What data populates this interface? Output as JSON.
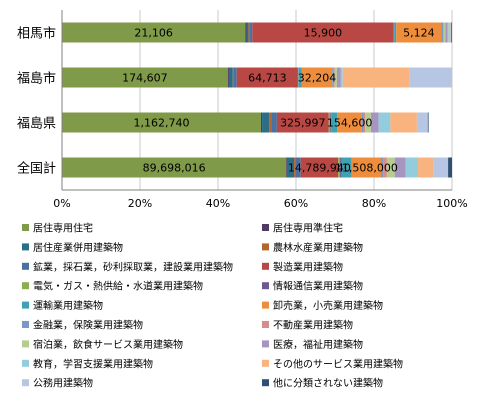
{
  "chart_data": {
    "type": "bar",
    "orientation": "horizontal",
    "stacked": "percent",
    "categories": [
      "相馬市",
      "福島市",
      "福島県",
      "全国計"
    ],
    "xlim": [
      0,
      100
    ],
    "x_ticks": [
      "0%",
      "20%",
      "40%",
      "60%",
      "80%",
      "100%"
    ],
    "grid": true,
    "legend_position": "bottom",
    "series": [
      {
        "name": "居住専用住宅",
        "color": "#7F9A48",
        "values": [
          47.0,
          42.5,
          51.0,
          57.5
        ]
      },
      {
        "name": "居住専用準住宅",
        "color": "#4E3B62",
        "values": [
          0.3,
          0.3,
          0.3,
          0.4
        ]
      },
      {
        "name": "居住産業併用建築物",
        "color": "#2C6E87",
        "values": [
          0.5,
          1.0,
          1.8,
          1.6
        ]
      },
      {
        "name": "農林水産業用建築物",
        "color": "#B4652B",
        "values": [
          0.3,
          0.2,
          0.6,
          0.4
        ]
      },
      {
        "name": "鉱業，採石業，砂利採取業，建設業用建築物",
        "color": "#4A71A2",
        "values": [
          0.7,
          0.8,
          1.4,
          1.3
        ]
      },
      {
        "name": "製造業用建築物",
        "color": "#B94844",
        "values": [
          36.2,
          15.7,
          13.3,
          9.6
        ]
      },
      {
        "name": "電気・ガス・熱供給・水道業用建築物",
        "color": "#8DAD50",
        "values": [
          0.1,
          0.1,
          0.4,
          0.5
        ]
      },
      {
        "name": "情報通信業用建築物",
        "color": "#6E5A8E",
        "values": [
          0.1,
          0.1,
          0.2,
          0.4
        ]
      },
      {
        "name": "運輸業用建築物",
        "color": "#3DA3B3",
        "values": [
          0.5,
          0.8,
          1.6,
          2.6
        ]
      },
      {
        "name": "卸売業，小売業用建築物",
        "color": "#EE8E3D",
        "values": [
          11.6,
          7.8,
          6.3,
          7.5
        ]
      },
      {
        "name": "金融業，保険業用建築物",
        "color": "#7D97C6",
        "values": [
          0.4,
          0.3,
          0.4,
          0.6
        ]
      },
      {
        "name": "不動産業用建築物",
        "color": "#D88C8A",
        "values": [
          0.2,
          0.3,
          0.4,
          0.9
        ]
      },
      {
        "name": "宿泊業，飲食サービス業用建築物",
        "color": "#B7CD8C",
        "values": [
          0.4,
          0.6,
          1.5,
          2.0
        ]
      },
      {
        "name": "医療，福祉用建築物",
        "color": "#A795C1",
        "values": [
          0.6,
          1.0,
          2.0,
          2.8
        ]
      },
      {
        "name": "教育，学習支援業用建築物",
        "color": "#93CDDD",
        "values": [
          0.3,
          0.5,
          3.0,
          3.2
        ]
      },
      {
        "name": "その他のサービス業用建築物",
        "color": "#F9B37E",
        "values": [
          0.4,
          17.0,
          6.8,
          4.0
        ]
      },
      {
        "name": "公務用建築物",
        "color": "#B7C6E3",
        "values": [
          0.2,
          11.0,
          2.8,
          3.7
        ]
      },
      {
        "name": "他に分類されない建築物",
        "color": "#2F4F74",
        "values": [
          0.2,
          0.0,
          0.2,
          1.0
        ]
      }
    ],
    "data_labels": [
      {
        "category": "相馬市",
        "series": "居住専用住宅",
        "text": "21,106"
      },
      {
        "category": "相馬市",
        "series": "製造業用建築物",
        "text": "15,900"
      },
      {
        "category": "相馬市",
        "series": "卸売業，小売業用建築物",
        "text": "5,124"
      },
      {
        "category": "福島市",
        "series": "居住専用住宅",
        "text": "174,607"
      },
      {
        "category": "福島市",
        "series": "製造業用建築物",
        "text": "64,713"
      },
      {
        "category": "福島市",
        "series": "卸売業，小売業用建築物",
        "text": "32,204"
      },
      {
        "category": "福島県",
        "series": "居住専用住宅",
        "text": "1,162,740"
      },
      {
        "category": "福島県",
        "series": "製造業用建築物",
        "text": "325,997"
      },
      {
        "category": "福島県",
        "series": "卸売業，小売業用建築物",
        "text": "154,600"
      },
      {
        "category": "全国計",
        "series": "居住専用住宅",
        "text": "89,698,016"
      },
      {
        "category": "全国計",
        "series": "製造業用建築物",
        "text": "14,789,940"
      },
      {
        "category": "全国計",
        "series": "卸売業，小売業用建築物",
        "text": "11,508,000"
      }
    ]
  }
}
